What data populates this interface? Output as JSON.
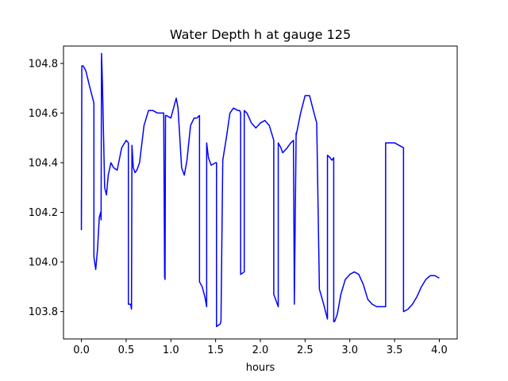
{
  "chart_data": {
    "type": "line",
    "title": "Water Depth h at gauge 125",
    "xlabel": "hours",
    "ylabel": "",
    "xlim": [
      -0.2,
      4.2
    ],
    "ylim": [
      103.69,
      104.87
    ],
    "xticks": [
      0.0,
      0.5,
      1.0,
      1.5,
      2.0,
      2.5,
      3.0,
      3.5,
      4.0
    ],
    "xtick_labels": [
      "0.0",
      "0.5",
      "1.0",
      "1.5",
      "2.0",
      "2.5",
      "3.0",
      "3.5",
      "4.0"
    ],
    "yticks": [
      103.8,
      104.0,
      104.2,
      104.4,
      104.6,
      104.8
    ],
    "ytick_labels": [
      "103.8",
      "104.0",
      "104.2",
      "104.4",
      "104.6",
      "104.8"
    ],
    "grid": false,
    "line_color": "#0000ff",
    "series": [
      {
        "x": [
          0.0,
          0.0,
          0.005,
          0.02,
          0.05,
          0.09,
          0.14,
          0.14,
          0.16,
          0.18,
          0.2,
          0.215,
          0.22,
          0.225,
          0.235,
          0.26,
          0.28,
          0.3,
          0.33,
          0.36,
          0.4,
          0.45,
          0.5,
          0.525,
          0.525,
          0.55,
          0.56,
          0.565,
          0.58,
          0.6,
          0.62,
          0.65,
          0.7,
          0.75,
          0.8,
          0.85,
          0.92,
          0.93,
          0.935,
          0.94,
          0.95,
          1.0,
          1.03,
          1.06,
          1.08,
          1.09,
          1.12,
          1.15,
          1.18,
          1.22,
          1.26,
          1.29,
          1.32,
          1.32,
          1.35,
          1.38,
          1.4,
          1.4,
          1.42,
          1.45,
          1.5,
          1.51,
          1.51,
          1.55,
          1.56,
          1.58,
          1.62,
          1.66,
          1.7,
          1.75,
          1.77,
          1.78,
          1.78,
          1.82,
          1.82,
          1.85,
          1.9,
          1.95,
          2.0,
          2.05,
          2.1,
          2.15,
          2.15,
          2.2,
          2.2,
          2.23,
          2.25,
          2.3,
          2.34,
          2.37,
          2.38,
          2.38,
          2.4,
          2.4,
          2.45,
          2.5,
          2.55,
          2.6,
          2.63,
          2.66,
          2.66,
          2.7,
          2.75,
          2.75,
          2.78,
          2.8,
          2.82,
          2.82,
          2.83,
          2.86,
          2.9,
          2.95,
          3.0,
          3.05,
          3.1,
          3.15,
          3.2,
          3.25,
          3.3,
          3.35,
          3.4,
          3.4,
          3.45,
          3.5,
          3.55,
          3.6,
          3.6,
          3.65,
          3.7,
          3.75,
          3.8,
          3.85,
          3.9,
          3.95,
          4.0
        ],
        "y": [
          104.25,
          104.13,
          104.79,
          104.79,
          104.77,
          104.71,
          104.64,
          104.02,
          103.97,
          104.05,
          104.18,
          104.2,
          104.17,
          104.84,
          104.72,
          104.3,
          104.27,
          104.35,
          104.4,
          104.38,
          104.37,
          104.46,
          104.49,
          104.48,
          103.83,
          103.83,
          103.81,
          104.47,
          104.38,
          104.36,
          104.37,
          104.4,
          104.55,
          104.61,
          104.61,
          104.6,
          104.6,
          103.94,
          103.93,
          104.59,
          104.59,
          104.58,
          104.62,
          104.66,
          104.62,
          104.56,
          104.38,
          104.35,
          104.41,
          104.55,
          104.58,
          104.58,
          104.59,
          103.92,
          103.9,
          103.86,
          103.82,
          104.48,
          104.42,
          104.39,
          104.4,
          104.4,
          103.74,
          103.75,
          103.76,
          104.41,
          104.5,
          104.6,
          104.62,
          104.61,
          104.61,
          104.6,
          103.95,
          103.96,
          104.61,
          104.6,
          104.56,
          104.54,
          104.56,
          104.57,
          104.55,
          104.49,
          103.87,
          103.82,
          104.48,
          104.46,
          104.44,
          104.46,
          104.48,
          104.49,
          103.83,
          103.84,
          104.52,
          104.51,
          104.6,
          104.67,
          104.67,
          104.6,
          104.56,
          103.89,
          103.89,
          103.84,
          103.77,
          104.43,
          104.42,
          104.41,
          104.42,
          103.76,
          103.76,
          103.79,
          103.87,
          103.93,
          103.95,
          103.96,
          103.95,
          103.91,
          103.85,
          103.83,
          103.82,
          103.82,
          103.82,
          104.48,
          104.48,
          104.48,
          104.47,
          104.46,
          103.8,
          103.81,
          103.83,
          103.86,
          103.9,
          103.93,
          103.945,
          103.945,
          103.935
        ]
      }
    ]
  }
}
